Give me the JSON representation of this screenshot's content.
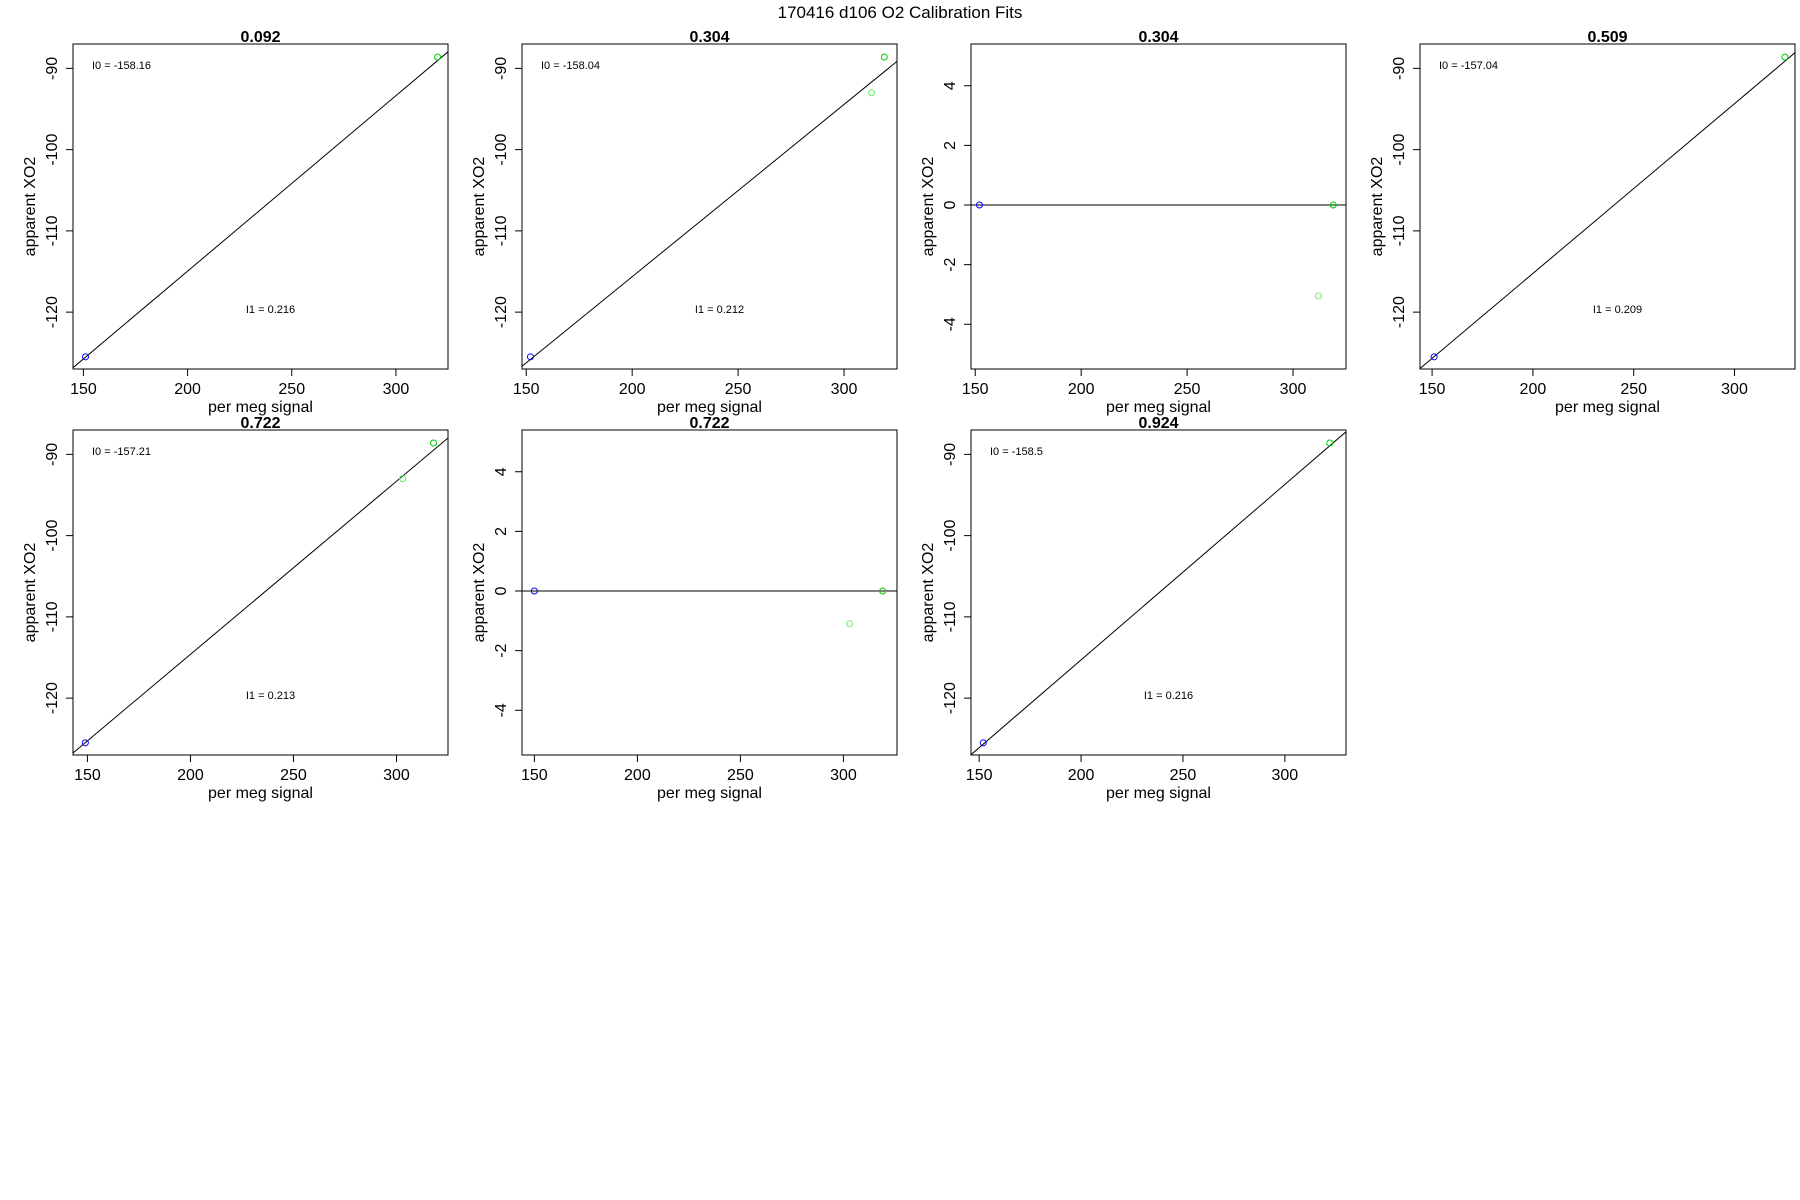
{
  "figure_title": "170416   d106   O2 Calibration Fits",
  "colors": {
    "blue_point": "#0000ff",
    "green_point": "#00cc00",
    "light_green_point": "#66ee66",
    "line": "#000000"
  },
  "chart_data": [
    {
      "type": "scatter",
      "title": "0.092",
      "xlabel": "per meg signal",
      "ylabel": "apparent XO2",
      "xlim": [
        145,
        325
      ],
      "ylim": [
        -127,
        -87
      ],
      "xticks": [
        150,
        200,
        250,
        300
      ],
      "yticks": [
        -90,
        -100,
        -110,
        -120
      ],
      "annotations": {
        "I0": "I0 =  -158.16",
        "I1": "I1 =  0.216"
      },
      "line": {
        "type": "abline",
        "intercept": -158.16,
        "slope": 0.216
      },
      "points": [
        {
          "x": 151,
          "y": -125.5,
          "color": "blue"
        },
        {
          "x": 320,
          "y": -88.6,
          "color": "green"
        }
      ]
    },
    {
      "type": "scatter",
      "title": "0.304",
      "xlabel": "per meg signal",
      "ylabel": "apparent XO2",
      "xlim": [
        148,
        325
      ],
      "ylim": [
        -127,
        -87
      ],
      "xticks": [
        150,
        200,
        250,
        300
      ],
      "yticks": [
        -90,
        -100,
        -110,
        -120
      ],
      "annotations": {
        "I0": "I0 =  -158.04",
        "I1": "I1 =  0.212"
      },
      "line": {
        "type": "abline",
        "intercept": -158.04,
        "slope": 0.212
      },
      "points": [
        {
          "x": 152,
          "y": -125.5,
          "color": "blue"
        },
        {
          "x": 313,
          "y": -93.0,
          "color": "light_green"
        },
        {
          "x": 319,
          "y": -88.6,
          "color": "green"
        }
      ]
    },
    {
      "type": "scatter",
      "title": "0.304",
      "xlabel": "per meg signal",
      "ylabel": "apparent XO2",
      "xlim": [
        148,
        325
      ],
      "ylim": [
        -5.5,
        5.4
      ],
      "xticks": [
        150,
        200,
        250,
        300
      ],
      "yticks": [
        4,
        2,
        0,
        -2,
        -4
      ],
      "annotations": {},
      "line": {
        "type": "hline",
        "y": 0
      },
      "points": [
        {
          "x": 152,
          "y": 0,
          "color": "blue"
        },
        {
          "x": 312,
          "y": -3.05,
          "color": "light_green"
        },
        {
          "x": 319,
          "y": 0,
          "color": "green"
        }
      ]
    },
    {
      "type": "scatter",
      "title": "0.509",
      "xlabel": "per meg signal",
      "ylabel": "apparent XO2",
      "xlim": [
        144,
        330
      ],
      "ylim": [
        -127,
        -87
      ],
      "xticks": [
        150,
        200,
        250,
        300
      ],
      "yticks": [
        -90,
        -100,
        -110,
        -120
      ],
      "annotations": {
        "I0": "I0 =  -157.04",
        "I1": "I1 =  0.209"
      },
      "line": {
        "type": "abline",
        "intercept": -157.04,
        "slope": 0.209
      },
      "points": [
        {
          "x": 151,
          "y": -125.5,
          "color": "blue"
        },
        {
          "x": 325,
          "y": -88.6,
          "color": "green"
        }
      ]
    },
    {
      "type": "scatter",
      "title": "0.722",
      "xlabel": "per meg signal",
      "ylabel": "apparent XO2",
      "xlim": [
        143,
        325
      ],
      "ylim": [
        -127,
        -87
      ],
      "xticks": [
        150,
        200,
        250,
        300
      ],
      "yticks": [
        -90,
        -100,
        -110,
        -120
      ],
      "annotations": {
        "I0": "I0 =  -157.21",
        "I1": "I1 =  0.213"
      },
      "line": {
        "type": "abline",
        "intercept": -157.21,
        "slope": 0.213
      },
      "points": [
        {
          "x": 149,
          "y": -125.5,
          "color": "blue"
        },
        {
          "x": 303,
          "y": -93.0,
          "color": "light_green"
        },
        {
          "x": 318,
          "y": -88.6,
          "color": "green"
        }
      ]
    },
    {
      "type": "scatter",
      "title": "0.722",
      "xlabel": "per meg signal",
      "ylabel": "apparent XO2",
      "xlim": [
        144,
        326
      ],
      "ylim": [
        -5.5,
        5.4
      ],
      "xticks": [
        150,
        200,
        250,
        300
      ],
      "yticks": [
        4,
        2,
        0,
        -2,
        -4
      ],
      "annotations": {},
      "line": {
        "type": "hline",
        "y": 0
      },
      "points": [
        {
          "x": 150,
          "y": 0,
          "color": "blue"
        },
        {
          "x": 303,
          "y": -1.1,
          "color": "light_green"
        },
        {
          "x": 319,
          "y": 0,
          "color": "green"
        }
      ]
    },
    {
      "type": "scatter",
      "title": "0.924",
      "xlabel": "per meg signal",
      "ylabel": "apparent XO2",
      "xlim": [
        146,
        330
      ],
      "ylim": [
        -127,
        -87
      ],
      "xticks": [
        150,
        200,
        250,
        300
      ],
      "yticks": [
        -90,
        -100,
        -110,
        -120
      ],
      "annotations": {
        "I0": "I0 =  -158.5",
        "I1": "I1 =  0.216"
      },
      "line": {
        "type": "abline",
        "intercept": -158.5,
        "slope": 0.216
      },
      "points": [
        {
          "x": 152,
          "y": -125.5,
          "color": "blue"
        },
        {
          "x": 322,
          "y": -88.6,
          "color": "green"
        }
      ]
    }
  ]
}
